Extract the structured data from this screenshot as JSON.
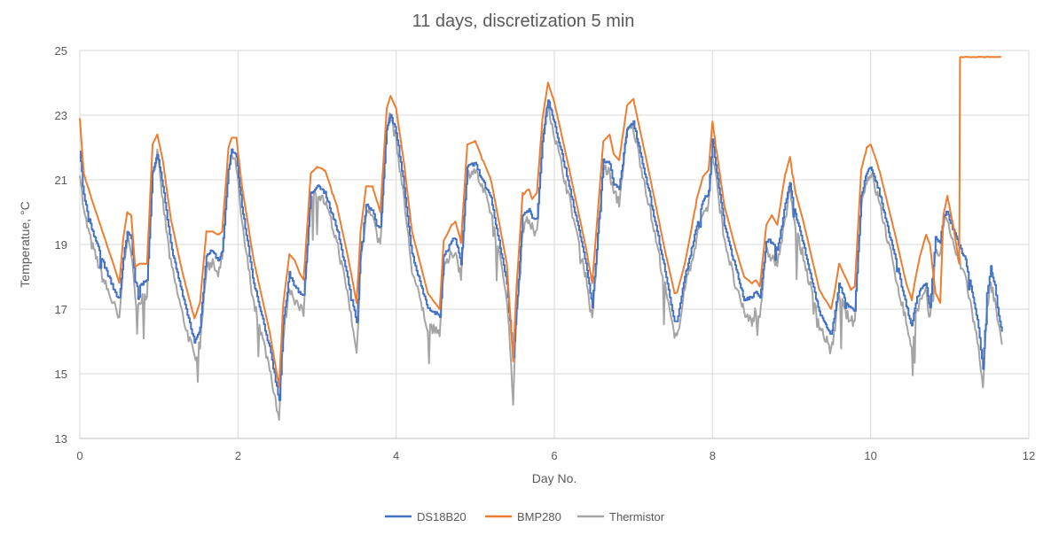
{
  "chart_data": {
    "type": "line",
    "title": "11 days, discretization 5 min",
    "xlabel": "Day No.",
    "ylabel": "Temperatue, °C",
    "xlim": [
      0,
      12
    ],
    "ylim": [
      13,
      25
    ],
    "x_ticks": [
      0,
      2,
      4,
      6,
      8,
      10,
      12
    ],
    "y_ticks": [
      13,
      15,
      17,
      19,
      21,
      23,
      25
    ],
    "grid": true,
    "legend_position": "bottom",
    "series": [
      {
        "name": "DS18B20",
        "color": "#4472C4",
        "x": [
          0,
          0.05,
          0.15,
          0.3,
          0.45,
          0.5,
          0.55,
          0.6,
          0.65,
          0.7,
          0.75,
          0.85,
          0.92,
          0.98,
          1.05,
          1.15,
          1.3,
          1.45,
          1.52,
          1.6,
          1.68,
          1.75,
          1.8,
          1.88,
          1.92,
          1.98,
          2.05,
          2.2,
          2.4,
          2.52,
          2.57,
          2.65,
          2.72,
          2.78,
          2.83,
          2.92,
          3.0,
          3.1,
          3.25,
          3.4,
          3.5,
          3.55,
          3.62,
          3.7,
          3.75,
          3.8,
          3.88,
          3.93,
          4.0,
          4.1,
          4.2,
          4.4,
          4.55,
          4.6,
          4.7,
          4.75,
          4.82,
          4.9,
          5.0,
          5.2,
          5.4,
          5.48,
          5.52,
          5.6,
          5.68,
          5.72,
          5.78,
          5.85,
          5.92,
          6.0,
          6.2,
          6.4,
          6.48,
          6.55,
          6.62,
          6.7,
          6.75,
          6.82,
          6.92,
          7.0,
          7.2,
          7.4,
          7.52,
          7.55,
          7.65,
          7.72,
          7.8,
          7.88,
          7.95,
          8.0,
          8.15,
          8.3,
          8.4,
          8.5,
          8.55,
          8.6,
          8.68,
          8.75,
          8.82,
          8.92,
          8.98,
          9.05,
          9.15,
          9.35,
          9.5,
          9.55,
          9.6,
          9.68,
          9.75,
          9.8,
          9.88,
          9.95,
          10.0,
          10.1,
          10.3,
          10.45,
          10.52,
          10.57,
          10.62,
          10.7,
          10.75,
          10.82,
          10.88,
          10.92,
          10.97,
          11.05,
          11.2,
          11.35,
          11.42,
          11.47,
          11.52,
          11.57,
          11.62,
          11.66
        ],
        "y": [
          21.9,
          20.5,
          19.5,
          18.4,
          17.5,
          17.3,
          18.6,
          19.4,
          19.2,
          17.8,
          17.7,
          17.9,
          21.3,
          21.8,
          20.8,
          19.0,
          17.4,
          16.0,
          16.4,
          18.7,
          18.8,
          18.5,
          18.8,
          21.3,
          21.9,
          21.7,
          20.2,
          17.8,
          15.8,
          14.2,
          16.5,
          18.1,
          17.7,
          17.5,
          17.4,
          20.6,
          20.8,
          20.6,
          19.5,
          17.8,
          16.6,
          18.8,
          20.2,
          20.1,
          19.6,
          19.5,
          22.6,
          23.0,
          22.5,
          20.8,
          18.7,
          17.0,
          16.8,
          18.6,
          19.1,
          19.2,
          18.4,
          21.4,
          21.5,
          20.4,
          17.8,
          15.5,
          17.0,
          19.9,
          20.1,
          19.8,
          19.8,
          22.2,
          23.5,
          22.8,
          20.7,
          18.4,
          17.1,
          19.3,
          21.6,
          21.5,
          20.9,
          20.7,
          22.6,
          22.8,
          20.6,
          18.2,
          16.6,
          16.6,
          18.0,
          18.7,
          19.6,
          20.4,
          20.6,
          22.2,
          19.6,
          18.2,
          17.3,
          17.4,
          17.5,
          17.3,
          19.1,
          19.1,
          18.8,
          20.3,
          20.9,
          19.9,
          19.0,
          16.9,
          16.2,
          16.9,
          17.8,
          17.3,
          17.0,
          17.0,
          20.5,
          21.2,
          21.4,
          20.7,
          18.7,
          17.1,
          16.5,
          17.2,
          17.6,
          17.8,
          17.1,
          19.2,
          19.1,
          19.9,
          20.0,
          19.4,
          18.5,
          16.7,
          15.2,
          17.5,
          18.3,
          17.7,
          16.8,
          16.3
        ]
      },
      {
        "name": "BMP280",
        "color": "#ED7D31",
        "x": [
          0,
          0.05,
          0.15,
          0.3,
          0.45,
          0.5,
          0.55,
          0.6,
          0.65,
          0.7,
          0.75,
          0.85,
          0.92,
          0.98,
          1.05,
          1.15,
          1.3,
          1.45,
          1.52,
          1.6,
          1.68,
          1.75,
          1.8,
          1.88,
          1.92,
          1.98,
          2.05,
          2.2,
          2.4,
          2.52,
          2.57,
          2.65,
          2.72,
          2.78,
          2.83,
          2.92,
          3.0,
          3.1,
          3.25,
          3.4,
          3.5,
          3.55,
          3.62,
          3.7,
          3.75,
          3.8,
          3.88,
          3.93,
          4.0,
          4.1,
          4.2,
          4.4,
          4.55,
          4.6,
          4.7,
          4.75,
          4.82,
          4.9,
          5.0,
          5.2,
          5.4,
          5.48,
          5.52,
          5.6,
          5.68,
          5.72,
          5.78,
          5.85,
          5.92,
          6.0,
          6.2,
          6.4,
          6.48,
          6.55,
          6.62,
          6.7,
          6.75,
          6.82,
          6.92,
          7.0,
          7.2,
          7.4,
          7.52,
          7.55,
          7.65,
          7.72,
          7.8,
          7.88,
          7.95,
          8.0,
          8.15,
          8.3,
          8.4,
          8.5,
          8.55,
          8.6,
          8.68,
          8.75,
          8.82,
          8.92,
          8.98,
          9.05,
          9.15,
          9.35,
          9.5,
          9.55,
          9.6,
          9.68,
          9.75,
          9.8,
          9.88,
          9.95,
          10.0,
          10.1,
          10.3,
          10.45,
          10.52,
          10.57,
          10.62,
          10.7,
          10.75,
          10.82,
          10.88,
          10.92,
          10.97,
          11.05,
          11.12,
          11.13,
          11.65
        ],
        "y": [
          22.9,
          21.2,
          20.4,
          19.3,
          18.2,
          17.8,
          19.2,
          20.0,
          19.9,
          18.3,
          18.4,
          18.4,
          22.1,
          22.4,
          21.6,
          19.8,
          18.1,
          16.7,
          17.2,
          19.4,
          19.4,
          19.3,
          19.4,
          22.0,
          22.3,
          22.3,
          20.8,
          18.5,
          16.3,
          14.6,
          17.1,
          18.7,
          18.5,
          18.1,
          17.9,
          21.2,
          21.4,
          21.3,
          20.2,
          18.5,
          17.2,
          19.4,
          20.8,
          20.8,
          20.4,
          20.0,
          23.2,
          23.6,
          23.2,
          21.5,
          19.4,
          17.5,
          17.0,
          19.1,
          19.6,
          19.7,
          19.1,
          22.1,
          22.2,
          21.0,
          18.4,
          15.4,
          17.6,
          20.6,
          20.7,
          20.4,
          20.6,
          22.9,
          24.0,
          23.4,
          21.2,
          18.9,
          17.8,
          20.0,
          22.2,
          22.4,
          21.8,
          21.6,
          23.3,
          23.5,
          21.2,
          18.8,
          17.5,
          17.5,
          18.4,
          19.3,
          20.4,
          21.1,
          21.3,
          22.8,
          20.2,
          18.8,
          18.0,
          17.8,
          17.9,
          17.7,
          19.6,
          19.9,
          19.6,
          21.2,
          21.7,
          20.6,
          19.7,
          17.6,
          17.0,
          17.6,
          18.4,
          18.0,
          17.6,
          17.7,
          21.3,
          22.0,
          22.1,
          21.4,
          19.4,
          17.8,
          17.3,
          18.0,
          18.6,
          19.3,
          19.0,
          17.5,
          17.2,
          19.9,
          20.5,
          19.5,
          18.4,
          24.8,
          24.8
        ]
      },
      {
        "name": "Thermistor",
        "color": "#A5A5A5",
        "x": [
          0,
          0.05,
          0.15,
          0.3,
          0.45,
          0.5,
          0.55,
          0.6,
          0.65,
          0.7,
          0.75,
          0.85,
          0.92,
          0.98,
          1.05,
          1.15,
          1.3,
          1.45,
          1.52,
          1.6,
          1.68,
          1.75,
          1.8,
          1.88,
          1.92,
          1.98,
          2.05,
          2.2,
          2.4,
          2.52,
          2.57,
          2.65,
          2.72,
          2.78,
          2.83,
          2.92,
          3.0,
          3.1,
          3.25,
          3.4,
          3.5,
          3.55,
          3.62,
          3.7,
          3.75,
          3.8,
          3.88,
          3.93,
          4.0,
          4.1,
          4.2,
          4.4,
          4.55,
          4.6,
          4.7,
          4.75,
          4.82,
          4.9,
          5.0,
          5.2,
          5.4,
          5.48,
          5.52,
          5.6,
          5.68,
          5.72,
          5.78,
          5.85,
          5.92,
          6.0,
          6.2,
          6.4,
          6.48,
          6.55,
          6.62,
          6.7,
          6.75,
          6.82,
          6.92,
          7.0,
          7.2,
          7.4,
          7.52,
          7.55,
          7.65,
          7.72,
          7.8,
          7.88,
          7.95,
          8.0,
          8.15,
          8.3,
          8.4,
          8.5,
          8.55,
          8.6,
          8.68,
          8.75,
          8.82,
          8.92,
          8.98,
          9.05,
          9.15,
          9.35,
          9.5,
          9.55,
          9.6,
          9.68,
          9.75,
          9.8,
          9.88,
          9.95,
          10.0,
          10.1,
          10.3,
          10.45,
          10.52,
          10.57,
          10.62,
          10.7,
          10.75,
          10.82,
          10.88,
          10.92,
          10.97,
          11.05,
          11.2,
          11.35,
          11.42,
          11.47,
          11.52,
          11.57,
          11.62,
          11.66
        ],
        "y": [
          21.3,
          20.0,
          19.0,
          17.9,
          17.0,
          16.6,
          18.4,
          19.2,
          18.8,
          17.3,
          17.2,
          17.5,
          21.1,
          21.8,
          20.3,
          18.4,
          16.8,
          15.5,
          15.9,
          18.2,
          18.5,
          18.1,
          18.5,
          21.2,
          21.8,
          21.4,
          19.6,
          17.2,
          15.2,
          13.6,
          16.1,
          17.7,
          17.3,
          17.0,
          16.9,
          20.4,
          20.6,
          20.3,
          19.1,
          17.3,
          15.6,
          18.4,
          20.0,
          20.0,
          19.3,
          19.0,
          22.6,
          23.0,
          22.2,
          20.4,
          18.2,
          16.4,
          16.3,
          18.2,
          18.7,
          18.8,
          18.0,
          21.2,
          21.3,
          20.0,
          17.4,
          14.2,
          16.6,
          19.5,
          19.8,
          19.5,
          19.3,
          22.2,
          23.4,
          22.4,
          20.3,
          18.0,
          16.6,
          19.0,
          21.4,
          21.2,
          20.6,
          20.3,
          22.5,
          22.6,
          20.2,
          17.7,
          16.1,
          16.1,
          17.7,
          18.3,
          19.2,
          20.0,
          20.2,
          21.8,
          19.2,
          17.6,
          16.9,
          16.6,
          17.0,
          16.8,
          18.8,
          18.6,
          18.4,
          19.7,
          20.8,
          19.5,
          18.6,
          16.5,
          15.7,
          16.4,
          17.5,
          16.9,
          16.6,
          16.7,
          20.2,
          21.0,
          21.2,
          20.4,
          18.2,
          16.6,
          15.8,
          16.8,
          17.2,
          17.5,
          16.6,
          18.9,
          18.6,
          19.7,
          19.8,
          18.9,
          18.0,
          16.0,
          14.7,
          16.9,
          17.8,
          17.2,
          16.4,
          15.9
        ]
      }
    ]
  }
}
